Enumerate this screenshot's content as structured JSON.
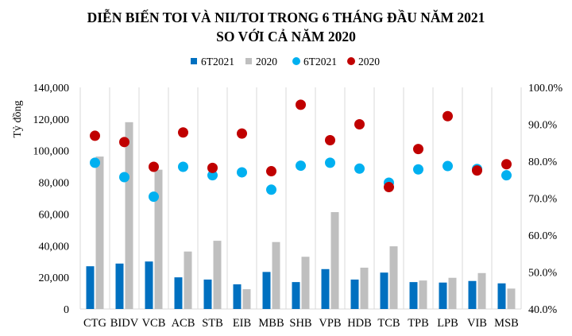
{
  "chart_data": {
    "type": "bar",
    "title": [
      "DIỄN BIẾN TOI VÀ NII/TOI TRONG 6 THÁNG ĐẦU NĂM 2021",
      "SO VỚI CẢ NĂM 2020"
    ],
    "ylabel": "Tỷ đồng",
    "ylim": [
      0,
      140000
    ],
    "y_ticks": [
      "0",
      "20,000",
      "40,000",
      "60,000",
      "80,000",
      "100,000",
      "120,000",
      "140,000"
    ],
    "y2lim": [
      40,
      100
    ],
    "y2_ticks": [
      "40.0%",
      "50.0%",
      "60.0%",
      "70.0%",
      "80.0%",
      "90.0%",
      "100.0%"
    ],
    "grid": "vertical",
    "legend_position": "top",
    "categories": [
      "CTG",
      "BIDV",
      "VCB",
      "ACB",
      "STB",
      "EIB",
      "MBB",
      "SHB",
      "VPB",
      "HDB",
      "TCB",
      "TPB",
      "LPB",
      "VIB",
      "MSB"
    ],
    "series": [
      {
        "name": "6T2021",
        "kind": "bar",
        "axis": "left",
        "color": "#0070C0",
        "values": [
          27000,
          28700,
          30000,
          20000,
          18600,
          15600,
          23400,
          17000,
          25200,
          18600,
          23000,
          17000,
          16700,
          17700,
          16200
        ]
      },
      {
        "name": "2020",
        "kind": "bar",
        "axis": "left",
        "color": "#BFBFBF",
        "values": [
          96300,
          118000,
          88000,
          36300,
          43100,
          12500,
          42300,
          33000,
          61200,
          26100,
          39600,
          18000,
          19700,
          22700,
          12900
        ]
      },
      {
        "name": "6T2021",
        "kind": "scatter",
        "axis": "right",
        "color": "#00B0F0",
        "values": [
          79.6,
          75.7,
          70.4,
          78.5,
          76.2,
          77.0,
          72.3,
          78.8,
          79.6,
          78.0,
          74.2,
          77.8,
          78.7,
          77.9,
          76.2
        ]
      },
      {
        "name": "2020",
        "kind": "scatter",
        "axis": "right",
        "color": "#C00000",
        "values": [
          86.9,
          85.2,
          78.5,
          87.8,
          78.2,
          87.5,
          77.3,
          95.3,
          85.7,
          90.0,
          73.0,
          83.3,
          92.2,
          77.5,
          79.2
        ]
      }
    ]
  }
}
